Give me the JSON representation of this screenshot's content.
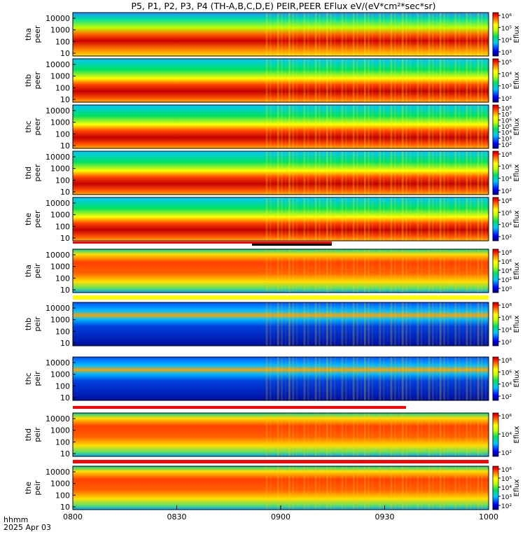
{
  "title": "P5, P1, P2, P3, P4 (TH-A,B,C,D,E) PEIR,PEER EFlux eV/(eV*cm²*sec*sr)",
  "footer": {
    "time_label": "hhmm",
    "date_label": "2025 Apr 03"
  },
  "colorbar_label": "Eflux",
  "colors": {
    "low": "#0000cc",
    "mid": "#00dd00",
    "high": "#ff0000",
    "max": "#aa0000"
  },
  "chart_data": {
    "type": "heatmap",
    "x_ticks": [
      "0800",
      "0830",
      "0900",
      "0930",
      "1000"
    ],
    "x_range": [
      "0800",
      "1000"
    ],
    "y_scale": "log",
    "y_ticks": [
      "10",
      "100",
      "1000",
      "10000"
    ],
    "panels": [
      {
        "probe": "tha",
        "species": "peer",
        "cbar_ticks": [
          "10⁶",
          "10⁵",
          "10⁴",
          "10³"
        ]
      },
      {
        "probe": "thb",
        "species": "peer",
        "cbar_ticks": [
          "10⁵",
          "10⁴",
          "10³",
          "10²"
        ]
      },
      {
        "probe": "thc",
        "species": "peer",
        "cbar_ticks": [
          "10⁸",
          "10⁷",
          "10⁶",
          "10⁵",
          "10⁴",
          "10³",
          "10²"
        ]
      },
      {
        "probe": "thd",
        "species": "peer",
        "cbar_ticks": [
          "10⁸",
          "10⁶",
          "10⁴",
          "10²"
        ]
      },
      {
        "probe": "the",
        "species": "peer",
        "cbar_ticks": [
          "10⁸",
          "10⁶",
          "10⁴",
          "10²"
        ]
      },
      {
        "probe": "tha",
        "species": "peir",
        "cbar_ticks": [
          "10⁸",
          "10⁶",
          "10⁴",
          "10²",
          "10⁰"
        ]
      },
      {
        "probe": "thb",
        "species": "peir",
        "cbar_ticks": [
          "10⁸",
          "10⁶",
          "10⁴",
          "10²"
        ]
      },
      {
        "probe": "thc",
        "species": "peir",
        "cbar_ticks": [
          "10⁸",
          "10⁶",
          "10⁴",
          "10²"
        ]
      },
      {
        "probe": "thd",
        "species": "peir",
        "cbar_ticks": [
          "10⁶",
          "10⁴",
          "10²"
        ]
      },
      {
        "probe": "the",
        "species": "peir",
        "cbar_ticks": [
          "10⁶",
          "10⁵",
          "10⁴",
          "10³",
          "10²"
        ]
      }
    ]
  }
}
